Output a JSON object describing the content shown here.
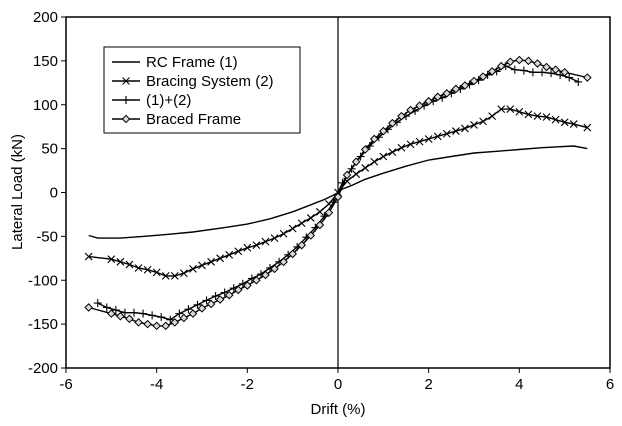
{
  "chart_data": {
    "type": "line",
    "title": "",
    "xlabel": "Drift (%)",
    "ylabel": "Lateral Load (kN)",
    "xlim": [
      -6,
      6
    ],
    "ylim": [
      -200,
      200
    ],
    "x_ticks": [
      -6,
      -4,
      -2,
      0,
      2,
      4,
      6
    ],
    "y_ticks": [
      -200,
      -150,
      -100,
      -50,
      0,
      50,
      100,
      150,
      200
    ],
    "grid": false,
    "legend_position": "top-left",
    "series": [
      {
        "name": "RC Frame (1)",
        "marker": "none",
        "color": "#000000",
        "x": [
          -5.5,
          -5.3,
          -4.8,
          -4.3,
          -3.8,
          -3.2,
          -2.5,
          -2.0,
          -1.5,
          -1.0,
          -0.6,
          -0.3,
          -0.1,
          0.0,
          0.1,
          0.3,
          0.6,
          1.0,
          1.5,
          2.0,
          2.5,
          3.0,
          3.5,
          4.0,
          4.5,
          4.8,
          5.2,
          5.5
        ],
        "y": [
          -49,
          -52,
          -52,
          -50,
          -48,
          -45,
          -40,
          -36,
          -30,
          -22,
          -14,
          -8,
          -3,
          0,
          4,
          8,
          15,
          22,
          30,
          37,
          41,
          45,
          47,
          49,
          51,
          52,
          53,
          50
        ]
      },
      {
        "name": "Bracing System (2)",
        "marker": "x",
        "color": "#000000",
        "x": [
          -5.5,
          -5.0,
          -4.8,
          -4.6,
          -4.4,
          -4.2,
          -4.0,
          -3.8,
          -3.6,
          -3.4,
          -3.2,
          -3.0,
          -2.8,
          -2.6,
          -2.4,
          -2.2,
          -2.0,
          -1.8,
          -1.6,
          -1.4,
          -1.2,
          -1.0,
          -0.8,
          -0.6,
          -0.4,
          -0.2,
          0.0,
          0.2,
          0.4,
          0.6,
          0.8,
          1.0,
          1.2,
          1.4,
          1.6,
          1.8,
          2.0,
          2.2,
          2.4,
          2.6,
          2.8,
          3.0,
          3.2,
          3.4,
          3.6,
          3.8,
          4.0,
          4.2,
          4.4,
          4.6,
          4.8,
          5.0,
          5.2,
          5.5
        ],
        "y": [
          -73,
          -76,
          -79,
          -82,
          -86,
          -88,
          -91,
          -95,
          -95,
          -92,
          -87,
          -83,
          -79,
          -75,
          -71,
          -67,
          -63,
          -60,
          -56,
          -52,
          -47,
          -41,
          -35,
          -29,
          -22,
          -13,
          0,
          13,
          21,
          28,
          35,
          41,
          46,
          51,
          55,
          58,
          61,
          64,
          67,
          70,
          73,
          77,
          81,
          87,
          95,
          95,
          92,
          89,
          87,
          86,
          83,
          80,
          78,
          74
        ]
      },
      {
        "name": "(1)+(2)",
        "marker": "+",
        "color": "#000000",
        "x": [
          -5.3,
          -5.1,
          -4.9,
          -4.7,
          -4.5,
          -4.3,
          -4.1,
          -3.9,
          -3.7,
          -3.5,
          -3.3,
          -3.1,
          -2.9,
          -2.7,
          -2.5,
          -2.3,
          -2.1,
          -1.9,
          -1.7,
          -1.5,
          -1.3,
          -1.1,
          -0.9,
          -0.7,
          -0.5,
          -0.3,
          -0.1,
          0.1,
          0.3,
          0.5,
          0.7,
          0.9,
          1.1,
          1.3,
          1.5,
          1.7,
          1.9,
          2.1,
          2.3,
          2.5,
          2.7,
          2.9,
          3.1,
          3.3,
          3.5,
          3.7,
          3.9,
          4.1,
          4.3,
          4.5,
          4.7,
          4.9,
          5.1,
          5.3
        ],
        "y": [
          -126,
          -131,
          -134,
          -137,
          -137,
          -138,
          -140,
          -142,
          -145,
          -138,
          -133,
          -128,
          -123,
          -118,
          -114,
          -109,
          -104,
          -98,
          -93,
          -86,
          -79,
          -71,
          -62,
          -51,
          -40,
          -27,
          -11,
          11,
          27,
          41,
          53,
          63,
          72,
          80,
          87,
          93,
          99,
          104,
          108,
          113,
          118,
          123,
          128,
          134,
          138,
          144,
          140,
          139,
          137,
          137,
          136,
          134,
          131,
          126
        ]
      },
      {
        "name": "Braced Frame",
        "marker": "diamond",
        "color": "#000000",
        "x": [
          -5.5,
          -5.0,
          -4.8,
          -4.6,
          -4.4,
          -4.2,
          -4.0,
          -3.8,
          -3.6,
          -3.4,
          -3.2,
          -3.0,
          -2.8,
          -2.6,
          -2.4,
          -2.2,
          -2.0,
          -1.8,
          -1.6,
          -1.4,
          -1.2,
          -1.0,
          -0.8,
          -0.6,
          -0.4,
          -0.2,
          0.0,
          0.2,
          0.4,
          0.6,
          0.8,
          1.0,
          1.2,
          1.4,
          1.6,
          1.8,
          2.0,
          2.2,
          2.4,
          2.6,
          2.8,
          3.0,
          3.2,
          3.4,
          3.6,
          3.8,
          4.0,
          4.2,
          4.4,
          4.6,
          4.8,
          5.0,
          5.5
        ],
        "y": [
          -131,
          -138,
          -141,
          -144,
          -148,
          -150,
          -152,
          -152,
          -148,
          -143,
          -138,
          -132,
          -127,
          -122,
          -117,
          -111,
          -106,
          -100,
          -94,
          -87,
          -79,
          -70,
          -60,
          -49,
          -37,
          -23,
          -5,
          20,
          35,
          49,
          61,
          70,
          79,
          87,
          94,
          99,
          104,
          109,
          113,
          118,
          122,
          127,
          132,
          138,
          144,
          149,
          151,
          150,
          147,
          143,
          140,
          137,
          131
        ]
      }
    ]
  }
}
